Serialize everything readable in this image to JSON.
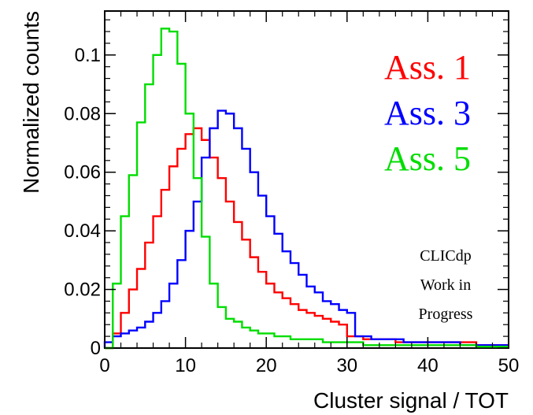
{
  "chart_data": {
    "type": "line",
    "step": true,
    "xlabel": "Cluster signal / TOT",
    "ylabel": "Normalized counts",
    "xlim": [
      0,
      50
    ],
    "ylim": [
      0,
      0.115
    ],
    "bin_width": 1,
    "x_ticks": [
      0,
      10,
      20,
      30,
      40,
      50
    ],
    "x_tick_labels": [
      "0",
      "10",
      "20",
      "30",
      "40",
      "50"
    ],
    "y_ticks": [
      0,
      0.02,
      0.04,
      0.06,
      0.08,
      0.1
    ],
    "y_tick_labels": [
      "0",
      "0.02",
      "0.04",
      "0.06",
      "0.08",
      "0.1"
    ],
    "grid": false,
    "legend_position": "top-right",
    "annotation": [
      "CLICdp",
      "Work in",
      "Progress"
    ],
    "series": [
      {
        "name": "Ass. 1",
        "color": "#ff0000",
        "values": [
          0.0,
          0.005,
          0.012,
          0.02,
          0.027,
          0.036,
          0.045,
          0.054,
          0.062,
          0.068,
          0.073,
          0.075,
          0.071,
          0.065,
          0.058,
          0.05,
          0.043,
          0.037,
          0.031,
          0.026,
          0.022,
          0.019,
          0.017,
          0.015,
          0.013,
          0.012,
          0.011,
          0.01,
          0.009,
          0.008,
          0.004,
          0.004,
          0.003,
          0.003,
          0.003,
          0.003,
          0.002,
          0.002,
          0.002,
          0.002,
          0.002,
          0.002,
          0.002,
          0.002,
          0.002,
          0.002,
          0.001,
          0.001,
          0.001,
          0.001
        ]
      },
      {
        "name": "Ass. 3",
        "color": "#0000ff",
        "values": [
          0.002,
          0.004,
          0.005,
          0.006,
          0.007,
          0.009,
          0.012,
          0.016,
          0.022,
          0.03,
          0.04,
          0.05,
          0.065,
          0.075,
          0.081,
          0.08,
          0.075,
          0.068,
          0.06,
          0.052,
          0.045,
          0.039,
          0.033,
          0.029,
          0.025,
          0.021,
          0.019,
          0.016,
          0.015,
          0.013,
          0.012,
          0.004,
          0.004,
          0.003,
          0.003,
          0.003,
          0.003,
          0.002,
          0.002,
          0.002,
          0.002,
          0.002,
          0.002,
          0.002,
          0.001,
          0.001,
          0.001,
          0.001,
          0.001,
          0.001
        ]
      },
      {
        "name": "Ass. 5",
        "color": "#00dd00",
        "values": [
          0.0,
          0.022,
          0.045,
          0.059,
          0.077,
          0.09,
          0.1,
          0.109,
          0.108,
          0.097,
          0.08,
          0.058,
          0.038,
          0.022,
          0.014,
          0.01,
          0.009,
          0.007,
          0.006,
          0.005,
          0.005,
          0.004,
          0.004,
          0.003,
          0.003,
          0.003,
          0.003,
          0.002,
          0.002,
          0.002,
          0.002,
          0.002,
          0.001,
          0.001,
          0.001,
          0.001,
          0.001,
          0.001,
          0.001,
          0.001,
          0.001,
          0.001,
          0.001,
          0.001,
          0.001,
          0.001,
          0.0005,
          0.0005,
          0.0005,
          0.0005
        ]
      }
    ]
  }
}
